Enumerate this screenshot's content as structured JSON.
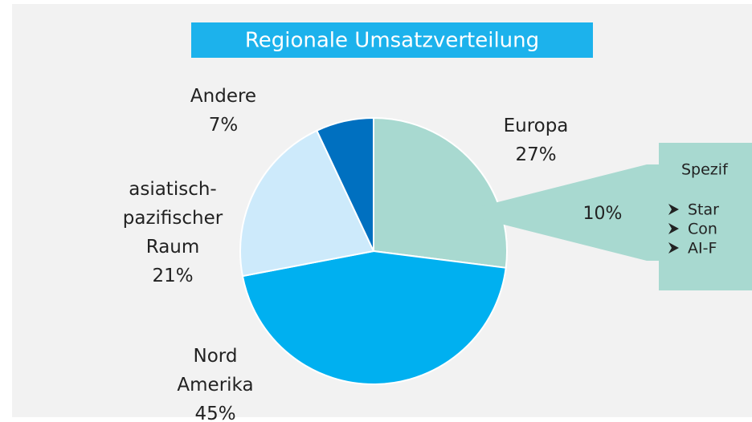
{
  "chart_data": {
    "type": "pie",
    "title": "Regionale Umsatzverteilung",
    "categories": [
      "Europa",
      "Nord Amerika",
      "asiatisch-pazifischer Raum",
      "Andere"
    ],
    "values": [
      27,
      45,
      21,
      7
    ],
    "value_labels": [
      "27%",
      "45%",
      "21%",
      "7%"
    ],
    "colors": [
      "#a8d9d0",
      "#00b0f0",
      "#cdeafb",
      "#0070c0"
    ],
    "callout": {
      "label": "10%",
      "title": "Spezif",
      "bullets": [
        "Star",
        "Con",
        "AI-F"
      ]
    }
  }
}
